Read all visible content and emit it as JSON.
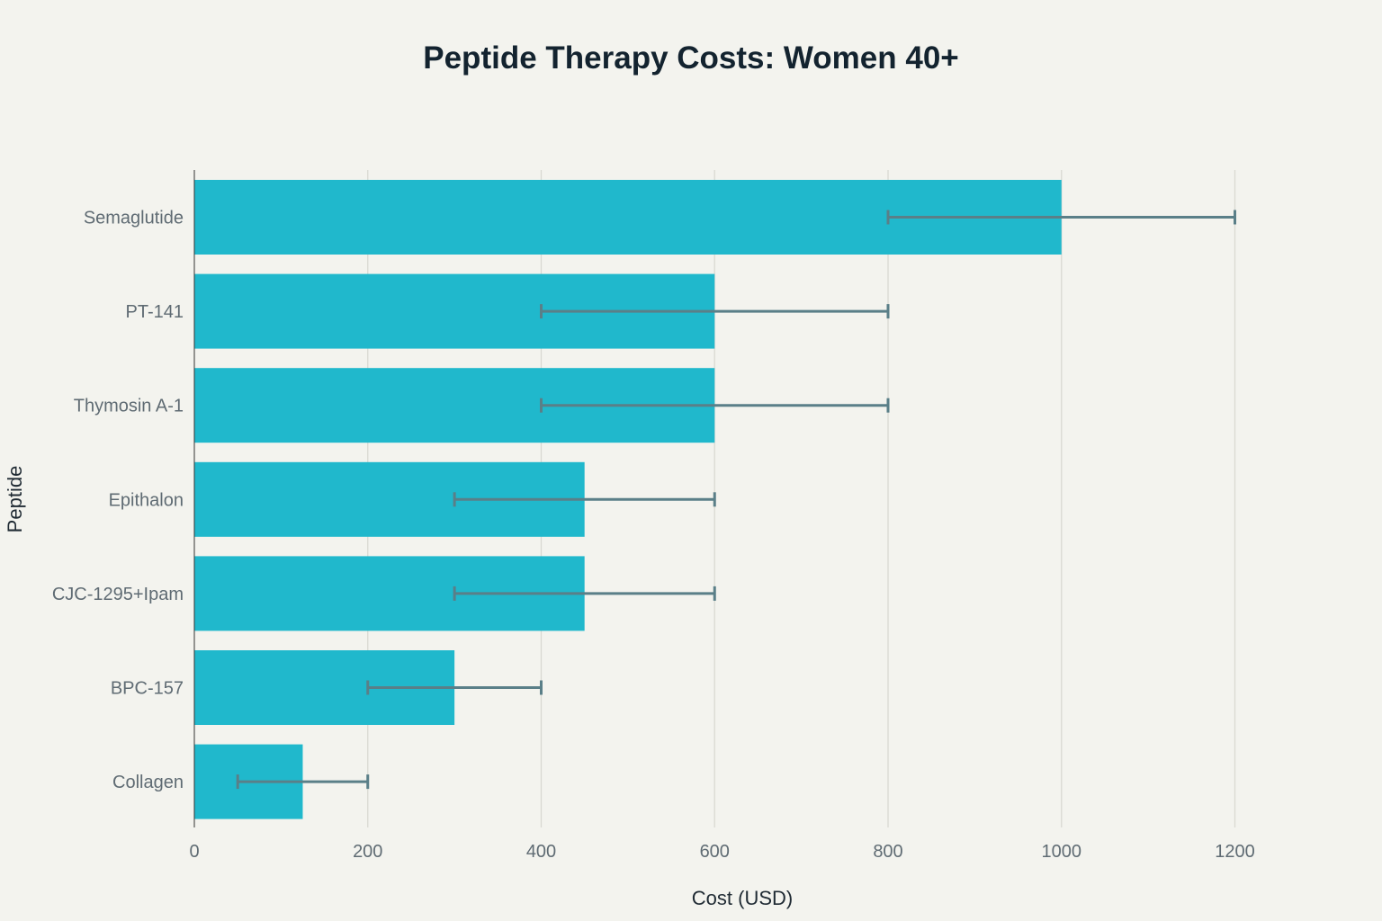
{
  "chart_data": {
    "type": "bar",
    "orientation": "horizontal",
    "title": "Peptide Therapy Costs: Women 40+",
    "xlabel": "Cost (USD)",
    "ylabel": "Peptide",
    "xlim": [
      0,
      1300
    ],
    "x_ticks": [
      0,
      200,
      400,
      600,
      800,
      1000,
      1200
    ],
    "grid": "vertical",
    "categories": [
      "Semaglutide",
      "PT-141",
      "Thymosin A-1",
      "Epithalon",
      "CJC-1295+Ipam",
      "BPC-157",
      "Collagen"
    ],
    "values": [
      1000,
      600,
      600,
      450,
      450,
      300,
      125
    ],
    "error_low": [
      800,
      400,
      400,
      300,
      300,
      200,
      50
    ],
    "error_high": [
      1200,
      800,
      800,
      600,
      600,
      400,
      200
    ],
    "colors": {
      "bar": "#20b8cc",
      "error_bar": "#5a7f88",
      "grid": "#d9d9d2",
      "axis": "#333333"
    }
  }
}
